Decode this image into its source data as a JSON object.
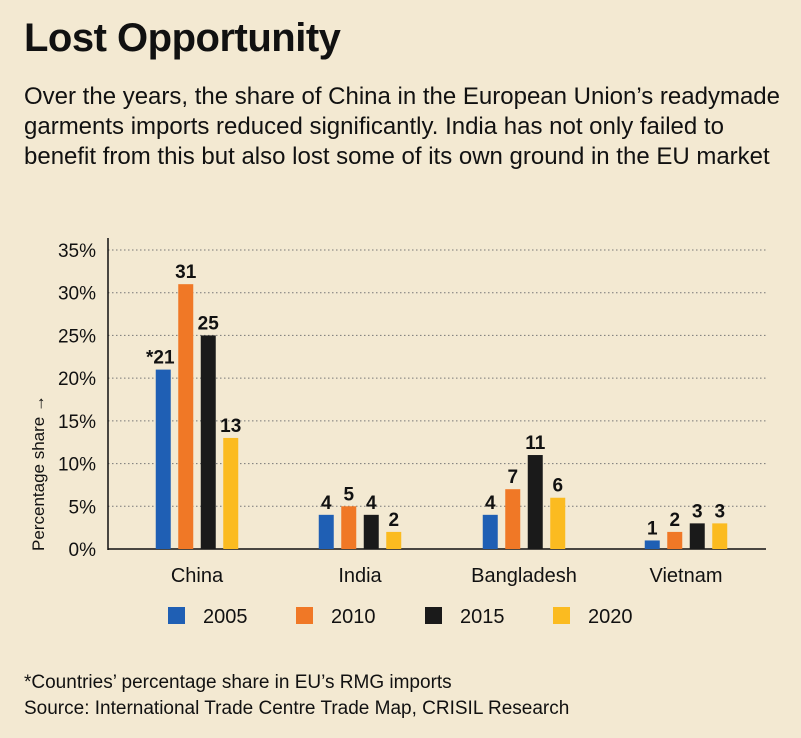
{
  "title": "Lost Opportunity",
  "subtitle": "Over the years, the share of China in the European Union’s readymade garments imports reduced significantly. India has not only failed to benefit from this but also lost some of its own ground in the EU market",
  "footnote": "*Countries’ percentage share in EU’s RMG imports",
  "source": "Source: International Trade Centre Trade Map, CRISIL Research",
  "chart_data": {
    "type": "bar",
    "ylabel": "Percentage share →",
    "ylim": [
      0,
      35
    ],
    "yticks": [
      0,
      5,
      10,
      15,
      20,
      25,
      30,
      35
    ],
    "ytick_labels": [
      "0%",
      "5%",
      "10%",
      "15%",
      "20%",
      "25%",
      "30%",
      "35%"
    ],
    "grid": true,
    "legend_position": "bottom",
    "categories": [
      "China",
      "India",
      "Bangladesh",
      "Vietnam"
    ],
    "series": [
      {
        "name": "2005",
        "color": "#1f5fb4",
        "values": [
          21,
          4,
          4,
          1
        ],
        "labels": [
          "*21",
          "4",
          "4",
          "1"
        ]
      },
      {
        "name": "2010",
        "color": "#f07826",
        "values": [
          31,
          5,
          7,
          2
        ],
        "labels": [
          "31",
          "5",
          "7",
          "2"
        ]
      },
      {
        "name": "2015",
        "color": "#1a1a1a",
        "values": [
          25,
          4,
          11,
          3
        ],
        "labels": [
          "25",
          "4",
          "11",
          "3"
        ]
      },
      {
        "name": "2020",
        "color": "#fbbb20",
        "values": [
          13,
          2,
          6,
          3
        ],
        "labels": [
          "13",
          "2",
          "6",
          "3"
        ]
      }
    ]
  }
}
